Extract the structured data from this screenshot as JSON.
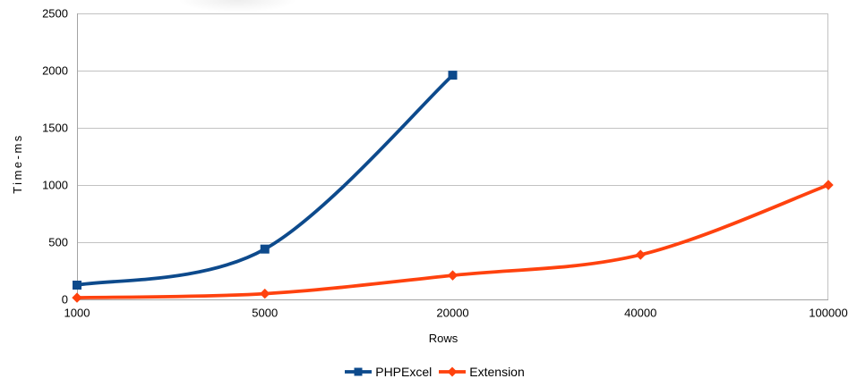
{
  "chart_data": {
    "type": "line",
    "smooth": true,
    "categories": [
      "1000",
      "5000",
      "20000",
      "40000",
      "100000"
    ],
    "series": [
      {
        "name": "PHPExcel",
        "color": "#0d4a8c",
        "marker": "square",
        "values": [
          125,
          440,
          1960,
          null,
          null
        ]
      },
      {
        "name": "Extension",
        "color": "#ff420e",
        "marker": "diamond",
        "values": [
          15,
          50,
          210,
          390,
          1000
        ]
      }
    ],
    "title": "",
    "xlabel": "Rows",
    "ylabel": "Time-ms",
    "ylim": [
      0,
      2500
    ],
    "yticks": [
      0,
      500,
      1000,
      1500,
      2000,
      2500
    ],
    "grid": "horizontal",
    "legend_position": "bottom"
  },
  "colors": {
    "grid": "#c2c2c2",
    "axis": "#a4a4a4",
    "text": "#000000",
    "background": "#ffffff"
  }
}
